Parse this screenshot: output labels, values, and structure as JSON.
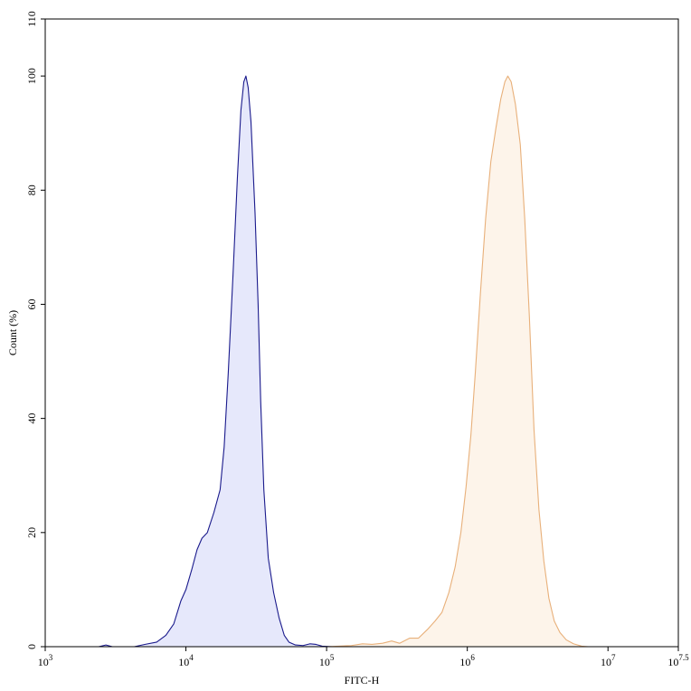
{
  "chart_data": {
    "type": "area",
    "xlabel": "FITC-H",
    "ylabel": "Count (%)",
    "x_scale": "log",
    "xlim": [
      1000,
      31622776.6
    ],
    "ylim": [
      0,
      110
    ],
    "grid": false,
    "x_ticks": [
      {
        "value": 1000,
        "base": "10",
        "exp": "3"
      },
      {
        "value": 10000,
        "base": "10",
        "exp": "4"
      },
      {
        "value": 100000,
        "base": "10",
        "exp": "5"
      },
      {
        "value": 1000000,
        "base": "10",
        "exp": "6"
      },
      {
        "value": 10000000,
        "base": "10",
        "exp": "7"
      },
      {
        "value": 31622776.6,
        "base": "10",
        "exp": "7.5"
      }
    ],
    "y_ticks": [
      0,
      20,
      40,
      60,
      80,
      100,
      110
    ],
    "series": [
      {
        "stroke": "#1a1a8c",
        "fill": "#e6e8fb",
        "points": [
          [
            1000,
            0
          ],
          [
            2400,
            0
          ],
          [
            2700,
            0.3
          ],
          [
            3000,
            0
          ],
          [
            4300,
            0
          ],
          [
            5100,
            0.4
          ],
          [
            6200,
            0.8
          ],
          [
            7200,
            2.0
          ],
          [
            8200,
            4.0
          ],
          [
            9200,
            8.0
          ],
          [
            10000,
            10.0
          ],
          [
            11000,
            13.5
          ],
          [
            12000,
            17.0
          ],
          [
            13000,
            19.0
          ],
          [
            14200,
            20.0
          ],
          [
            15800,
            23.5
          ],
          [
            17500,
            27.5
          ],
          [
            18700,
            35.0
          ],
          [
            20000,
            48.0
          ],
          [
            21600,
            65.0
          ],
          [
            23200,
            82.0
          ],
          [
            24600,
            94.0
          ],
          [
            25800,
            99.0
          ],
          [
            26700,
            100.0
          ],
          [
            27700,
            98.0
          ],
          [
            29000,
            92.0
          ],
          [
            31000,
            76.0
          ],
          [
            32600,
            60.0
          ],
          [
            34000,
            43.0
          ],
          [
            35800,
            27.5
          ],
          [
            38500,
            15.5
          ],
          [
            42000,
            9.5
          ],
          [
            46000,
            5.0
          ],
          [
            50000,
            2.0
          ],
          [
            54000,
            0.8
          ],
          [
            60000,
            0.3
          ],
          [
            68000,
            0.2
          ],
          [
            76000,
            0.5
          ],
          [
            84000,
            0.4
          ],
          [
            93000,
            0.1
          ],
          [
            110000,
            0
          ],
          [
            1000000,
            0
          ]
        ]
      },
      {
        "stroke": "#e8b07a",
        "fill": "#fdf4ea",
        "points": [
          [
            1000,
            0
          ],
          [
            100000,
            0
          ],
          [
            150000,
            0.2
          ],
          [
            180000,
            0.5
          ],
          [
            210000,
            0.4
          ],
          [
            250000,
            0.6
          ],
          [
            290000,
            1.0
          ],
          [
            330000,
            0.6
          ],
          [
            390000,
            1.5
          ],
          [
            450000,
            1.5
          ],
          [
            520000,
            3.0
          ],
          [
            590000,
            4.5
          ],
          [
            660000,
            6.0
          ],
          [
            740000,
            9.5
          ],
          [
            820000,
            14.0
          ],
          [
            900000,
            20.0
          ],
          [
            980000,
            28.0
          ],
          [
            1060000,
            37.0
          ],
          [
            1140000,
            48.0
          ],
          [
            1240000,
            62.0
          ],
          [
            1350000,
            75.0
          ],
          [
            1470000,
            85.0
          ],
          [
            1600000,
            91.0
          ],
          [
            1730000,
            96.0
          ],
          [
            1850000,
            99.0
          ],
          [
            1940000,
            100.0
          ],
          [
            2050000,
            99.0
          ],
          [
            2200000,
            95.0
          ],
          [
            2380000,
            88.0
          ],
          [
            2560000,
            75.0
          ],
          [
            2760000,
            58.0
          ],
          [
            2980000,
            38.0
          ],
          [
            3230000,
            24.0
          ],
          [
            3500000,
            15.0
          ],
          [
            3800000,
            8.5
          ],
          [
            4150000,
            4.5
          ],
          [
            4550000,
            2.5
          ],
          [
            5050000,
            1.2
          ],
          [
            5700000,
            0.5
          ],
          [
            6500000,
            0.1
          ],
          [
            7200000,
            0
          ],
          [
            31622776.6,
            0
          ]
        ]
      }
    ]
  }
}
